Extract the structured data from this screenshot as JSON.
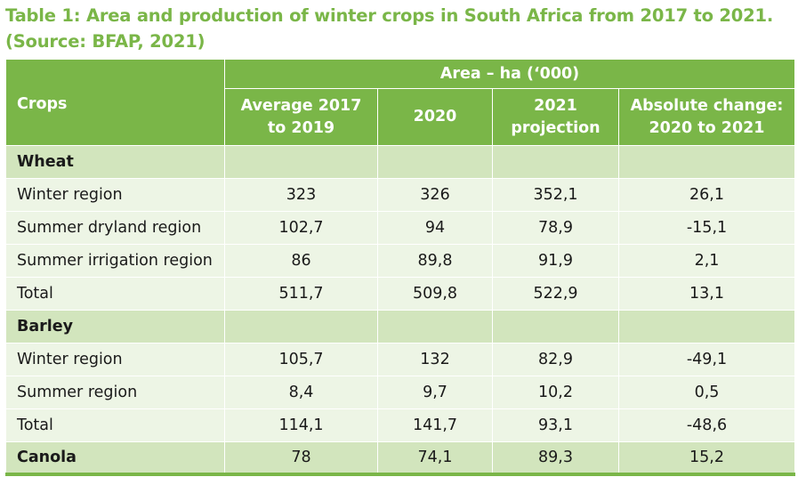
{
  "caption": {
    "line1": "Table 1: Area and production of winter crops in South Africa from 2017 to 2021.",
    "line2": "(Source: BFAP, 2021)"
  },
  "header": {
    "crops": "Crops",
    "area": "Area – ha (‘000)",
    "col1_line1": "Average 2017",
    "col1_line2": "to 2019",
    "col2": "2020",
    "col3_line1": "2021",
    "col3_line2": "projection",
    "col4_line1": "Absolute change:",
    "col4_line2": "2020 to 2021"
  },
  "wheat": {
    "label": "Wheat",
    "rows": [
      {
        "label": "Winter region",
        "avg": "323",
        "y2020": "326",
        "y2021": "352,1",
        "change": "26,1"
      },
      {
        "label": "Summer dryland region",
        "avg": "102,7",
        "y2020": "94",
        "y2021": "78,9",
        "change": "-15,1"
      },
      {
        "label": "Summer irrigation region",
        "avg": "86",
        "y2020": "89,8",
        "y2021": "91,9",
        "change": "2,1"
      },
      {
        "label": "Total",
        "avg": "511,7",
        "y2020": "509,8",
        "y2021": "522,9",
        "change": "13,1"
      }
    ]
  },
  "barley": {
    "label": "Barley",
    "rows": [
      {
        "label": "Winter region",
        "avg": "105,7",
        "y2020": "132",
        "y2021": "82,9",
        "change": "-49,1"
      },
      {
        "label": "Summer region",
        "avg": "8,4",
        "y2020": "9,7",
        "y2021": "10,2",
        "change": "0,5"
      },
      {
        "label": "Total",
        "avg": "114,1",
        "y2020": "141,7",
        "y2021": "93,1",
        "change": "-48,6"
      }
    ]
  },
  "canola": {
    "label": "Canola",
    "avg": "78",
    "y2020": "74,1",
    "y2021": "89,3",
    "change": "15,2"
  }
}
